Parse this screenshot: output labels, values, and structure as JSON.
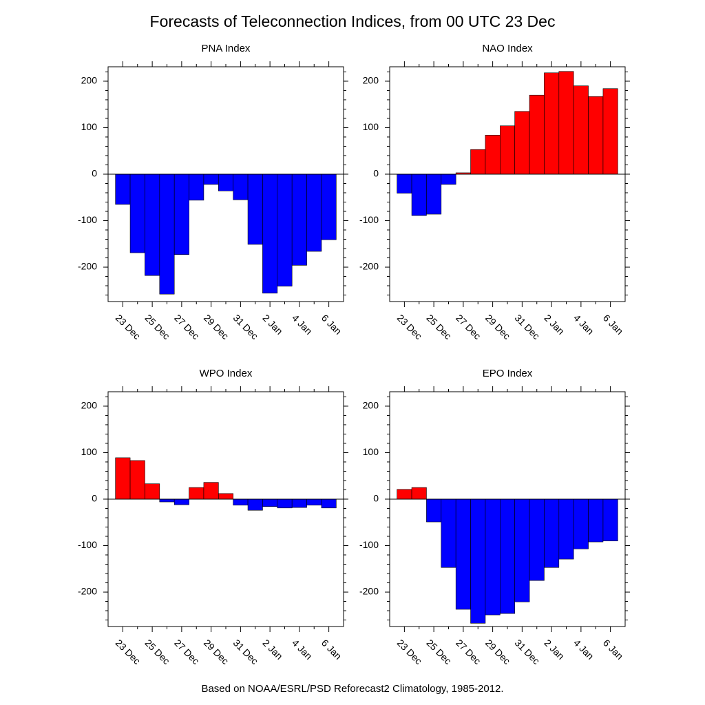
{
  "title": "Forecasts of Teleconnection Indices, from 00 UTC 23 Dec",
  "footnote": "Based on NOAA/ESRL/PSD Reforecast2 Climatology, 1985-2012.",
  "chart_data": [
    {
      "type": "bar",
      "title": "PNA Index",
      "categories": [
        "23 Dec",
        null,
        "25 Dec",
        null,
        "27 Dec",
        null,
        "29 Dec",
        null,
        "31 Dec",
        null,
        "2 Jan",
        null,
        "4 Jan",
        null,
        "6 Jan"
      ],
      "values": [
        -65,
        -169,
        -218,
        -258,
        -173,
        -56,
        -22,
        -36,
        -55,
        -151,
        -256,
        -241,
        -196,
        -166,
        -141
      ],
      "ylim": [
        -274,
        231
      ],
      "yticks": [
        -200,
        -100,
        0,
        100,
        200
      ],
      "positive_color": "#ff0000",
      "negative_color": "#0000ff"
    },
    {
      "type": "bar",
      "title": "NAO Index",
      "categories": [
        "23 Dec",
        null,
        "25 Dec",
        null,
        "27 Dec",
        null,
        "29 Dec",
        null,
        "31 Dec",
        null,
        "2 Jan",
        null,
        "4 Jan",
        null,
        "6 Jan"
      ],
      "values": [
        -41,
        -89,
        -86,
        -22,
        3,
        53,
        84,
        104,
        135,
        170,
        218,
        221,
        190,
        167,
        184
      ],
      "ylim": [
        -274,
        231
      ],
      "yticks": [
        -200,
        -100,
        0,
        100,
        200
      ],
      "positive_color": "#ff0000",
      "negative_color": "#0000ff"
    },
    {
      "type": "bar",
      "title": "WPO Index",
      "categories": [
        "23 Dec",
        null,
        "25 Dec",
        null,
        "27 Dec",
        null,
        "29 Dec",
        null,
        "31 Dec",
        null,
        "2 Jan",
        null,
        "4 Jan",
        null,
        "6 Jan"
      ],
      "values": [
        89,
        83,
        33,
        -6,
        -12,
        25,
        36,
        12,
        -13,
        -24,
        -16,
        -19,
        -18,
        -13,
        -19
      ],
      "ylim": [
        -274,
        231
      ],
      "yticks": [
        -200,
        -100,
        0,
        100,
        200
      ],
      "positive_color": "#ff0000",
      "negative_color": "#0000ff"
    },
    {
      "type": "bar",
      "title": "EPO Index",
      "categories": [
        "23 Dec",
        null,
        "25 Dec",
        null,
        "27 Dec",
        null,
        "29 Dec",
        null,
        "31 Dec",
        null,
        "2 Jan",
        null,
        "4 Jan",
        null,
        "6 Jan"
      ],
      "values": [
        21,
        25,
        -49,
        -147,
        -237,
        -267,
        -249,
        -246,
        -221,
        -175,
        -147,
        -129,
        -107,
        -92,
        -90
      ],
      "ylim": [
        -274,
        231
      ],
      "yticks": [
        -200,
        -100,
        0,
        100,
        200
      ],
      "positive_color": "#ff0000",
      "negative_color": "#0000ff"
    }
  ]
}
